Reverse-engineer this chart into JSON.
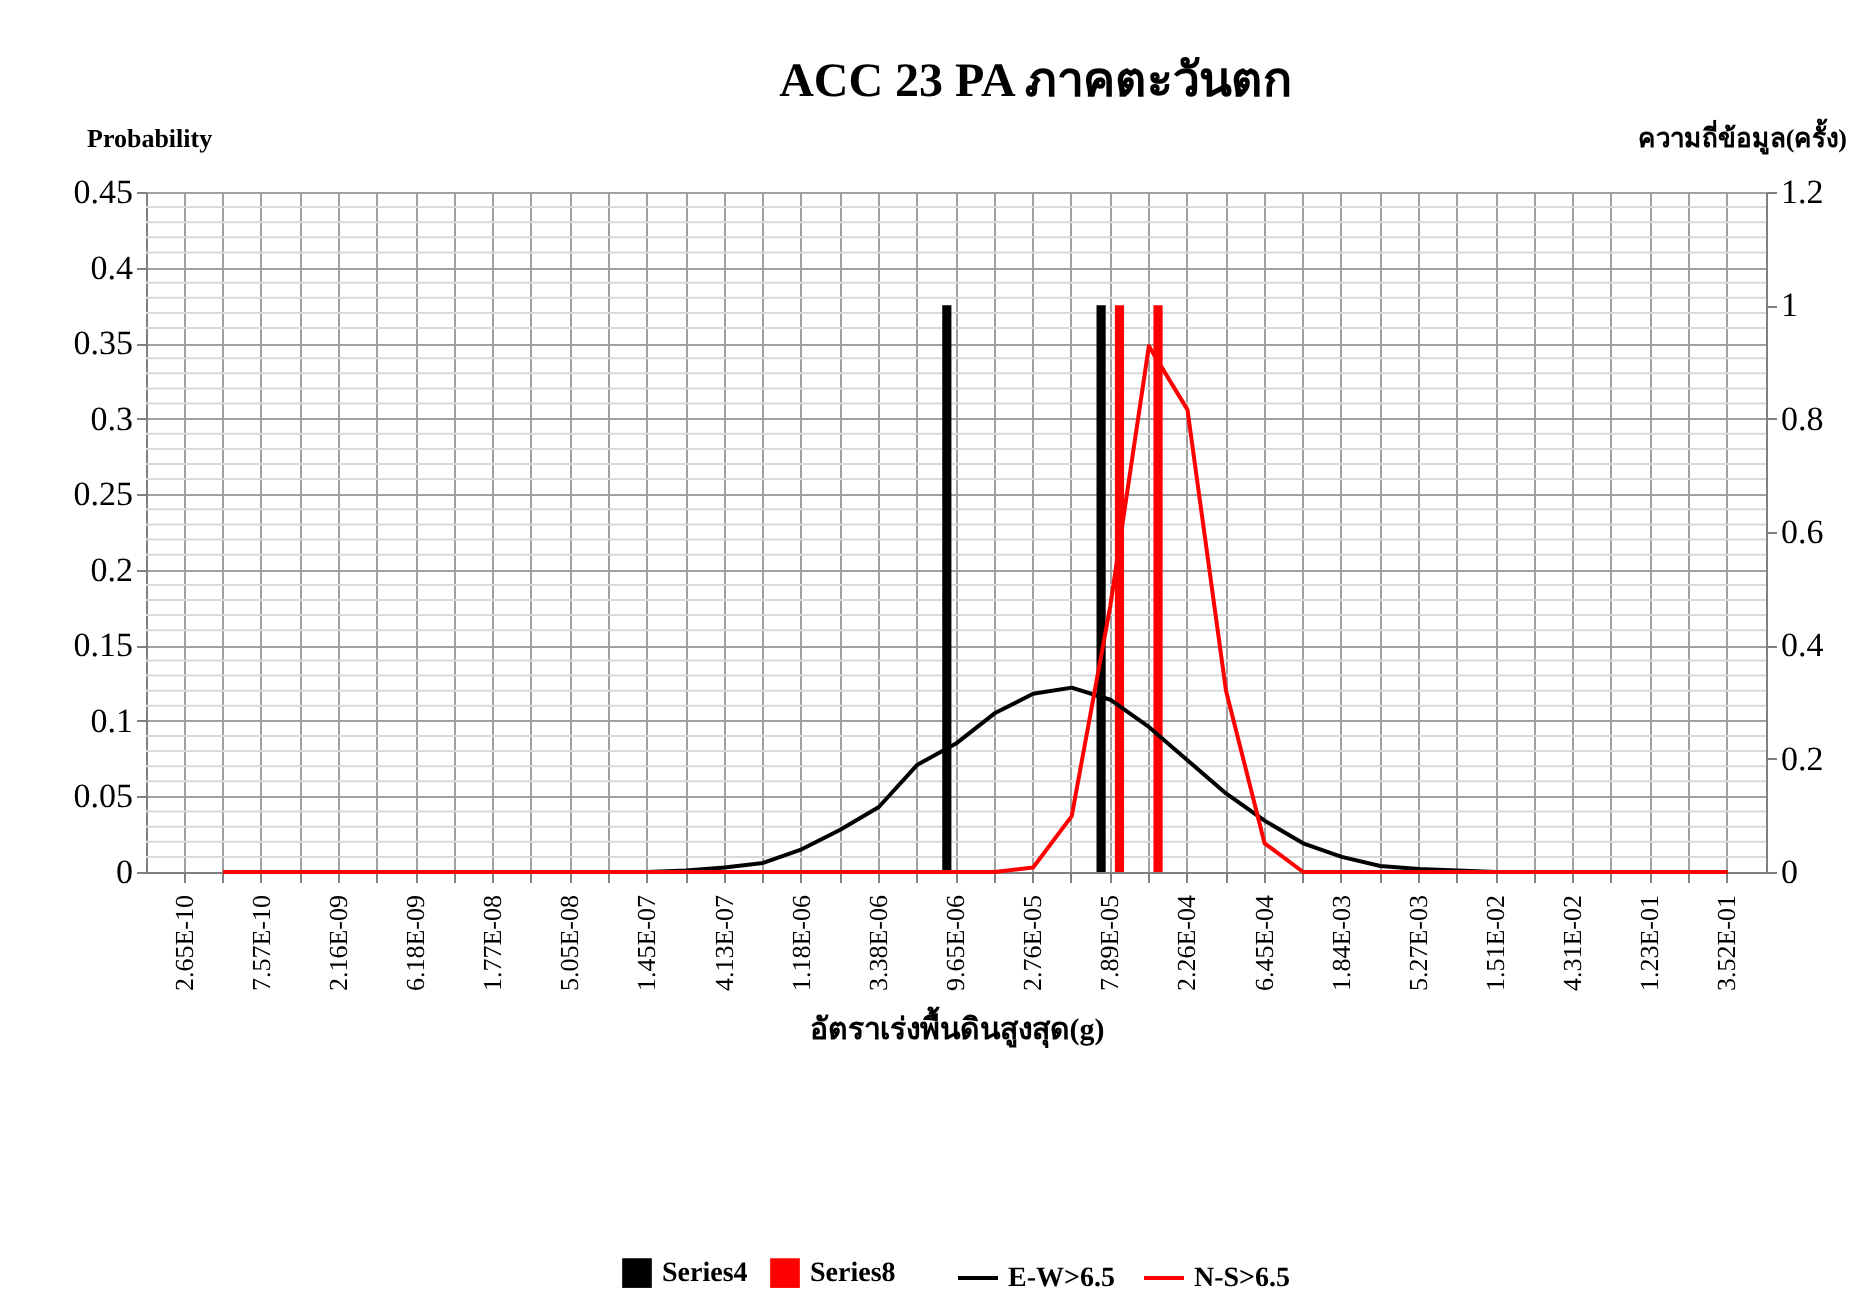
{
  "chart_data": {
    "type": "line",
    "title": "ACC 23 PA ภาคตะวันตก",
    "xlabel": "อัตราเร่งพื้นดินสูงสุด(g)",
    "ylabel": "Probability",
    "y2label": "ความถี่ข้อมูล(ครั้ง)",
    "categories": [
      "2.65E-10",
      null,
      "7.57E-10",
      null,
      "2.16E-09",
      null,
      "6.18E-09",
      null,
      "1.77E-08",
      null,
      "5.05E-08",
      null,
      "1.45E-07",
      null,
      "4.13E-07",
      null,
      "1.18E-06",
      null,
      "3.38E-06",
      null,
      "9.65E-06",
      null,
      "2.76E-05",
      null,
      "7.89E-05",
      null,
      "2.26E-04",
      null,
      "6.45E-04",
      null,
      "1.84E-03",
      null,
      "5.27E-03",
      null,
      "1.51E-02",
      null,
      "4.31E-02",
      null,
      "1.23E-01",
      null,
      "3.52E-01"
    ],
    "series": [
      {
        "name": "Series4",
        "type": "bar",
        "axis": "y2",
        "color": "#000000",
        "values": [
          null,
          null,
          null,
          null,
          null,
          null,
          null,
          null,
          null,
          null,
          null,
          null,
          null,
          null,
          null,
          null,
          null,
          null,
          null,
          null,
          1,
          null,
          null,
          null,
          1,
          null,
          null,
          null,
          null,
          null,
          null,
          null,
          null,
          null,
          null,
          null,
          null,
          null,
          null,
          null,
          null
        ]
      },
      {
        "name": "Series8",
        "type": "bar",
        "axis": "y2",
        "color": "#ff0000",
        "values": [
          null,
          null,
          null,
          null,
          null,
          null,
          null,
          null,
          null,
          null,
          null,
          null,
          null,
          null,
          null,
          null,
          null,
          null,
          null,
          null,
          null,
          null,
          null,
          null,
          1,
          1,
          null,
          null,
          null,
          null,
          null,
          null,
          null,
          null,
          null,
          null,
          null,
          null,
          null,
          null,
          null
        ]
      },
      {
        "name": "E-W>6.5",
        "color": "#000000",
        "values": [
          null,
          0,
          0,
          0,
          0,
          0,
          0,
          0,
          0,
          0,
          0,
          0,
          0,
          0.001,
          0.003,
          0.006,
          0.015,
          0.028,
          0.043,
          0.071,
          0.085,
          0.105,
          0.118,
          0.122,
          0.114,
          0.096,
          0.074,
          0.052,
          0.034,
          0.019,
          0.01,
          0.004,
          0.002,
          0.001,
          0,
          0,
          0,
          0,
          0,
          0,
          0
        ]
      },
      {
        "name": "N-S>6.5",
        "color": "#ff0000",
        "values": [
          null,
          0,
          0,
          0,
          0,
          0,
          0,
          0,
          0,
          0,
          0,
          0,
          0,
          0,
          0,
          0,
          0,
          0,
          0,
          0,
          0,
          0,
          0.003,
          0.037,
          0.176,
          0.348,
          0.306,
          0.12,
          0.019,
          0,
          0,
          0,
          0,
          0,
          0,
          0,
          0,
          0,
          0,
          0,
          0
        ]
      }
    ],
    "ylim": [
      0,
      0.45
    ],
    "yticks": [
      0,
      0.05,
      0.1,
      0.15,
      0.2,
      0.25,
      0.3,
      0.35,
      0.4,
      0.45
    ],
    "y2lim": [
      0,
      1.2
    ],
    "y2ticks": [
      0,
      0.2,
      0.4,
      0.6,
      0.8,
      1,
      1.2
    ],
    "grid": true,
    "legend": "bottom",
    "marker": "none",
    "line_style": "solid"
  }
}
